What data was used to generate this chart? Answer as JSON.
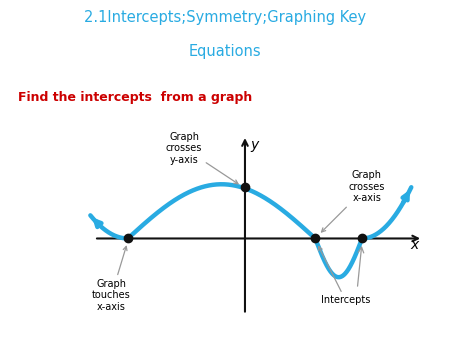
{
  "title_line1": "2.1Intercepts;Symmetry;Graphing Key",
  "title_line2": "Equations",
  "title_color": "#29ABE2",
  "subtitle": "Find the intercepts  from a graph",
  "subtitle_color": "#CC0000",
  "background_color": "#FFFFFF",
  "curve_color": "#29ABE2",
  "curve_linewidth": 3.2,
  "dot_color": "#111111",
  "dot_size": 6,
  "axis_color": "#111111",
  "arrow_color": "#999999",
  "xlim": [
    -3.5,
    3.8
  ],
  "ylim": [
    -1.6,
    2.0
  ],
  "dot_points": [
    [
      -2.5,
      0
    ],
    [
      0,
      1.0
    ],
    [
      1.5,
      0
    ],
    [
      2.5,
      0
    ]
  ]
}
